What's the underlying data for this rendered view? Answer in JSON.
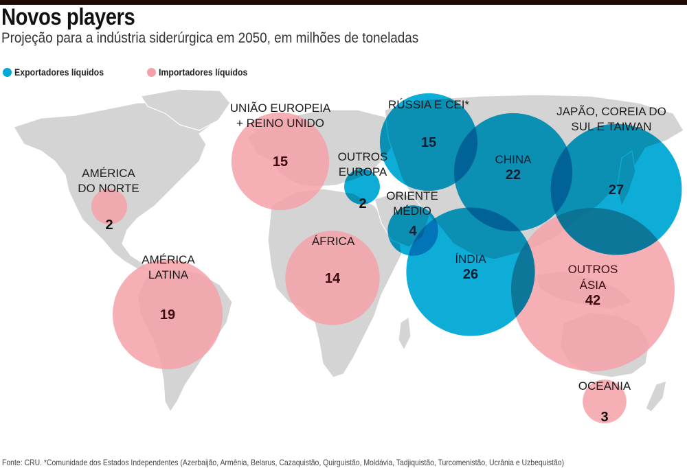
{
  "header": {
    "title": "Novos players",
    "subtitle": "Projeção para a indústria siderúrgica em 2050, em milhões de toneladas"
  },
  "legend": {
    "exporters": {
      "label": "Exportadores líquidos",
      "color": "#00a9d6"
    },
    "importers": {
      "label": "Importadores líquidos",
      "color": "#f3a1a8"
    }
  },
  "footer": "Fonte: CRU. *Comunidade dos Estados Independentes (Azerbaijão, Armênia, Belarus, Cazaquistão, Quirguistão,  Moldávia, Tadjiquistão, Turcomenistão, Ucrânia e Uzbequistão)",
  "chart_data": {
    "type": "bubble-map",
    "title": "Novos players",
    "subtitle": "Projeção para a indústria siderúrgica em 2050, em milhões de toneladas",
    "unit": "milhões de toneladas",
    "legend_position": "top-left",
    "series": [
      {
        "name": "Exportadores líquidos",
        "color": "#00a9d6"
      },
      {
        "name": "Importadores líquidos",
        "color": "#f3a1a8"
      }
    ],
    "regions": [
      {
        "id": "america-do-norte",
        "label": [
          "AMÉRICA",
          "DO NORTE"
        ],
        "value": 2,
        "type": "Importadores líquidos"
      },
      {
        "id": "america-latina",
        "label": [
          "AMÉRICA",
          "LATINA"
        ],
        "value": 19,
        "type": "Importadores líquidos"
      },
      {
        "id": "uniao-europeia",
        "label": [
          "UNIÃO EUROPEIA",
          "+ REINO UNIDO"
        ],
        "value": 15,
        "type": "Importadores líquidos"
      },
      {
        "id": "outros-europa",
        "label": [
          "OUTROS",
          "EUROPA"
        ],
        "value": 2,
        "type": "Exportadores líquidos"
      },
      {
        "id": "africa",
        "label": [
          "ÁFRICA"
        ],
        "value": 14,
        "type": "Importadores líquidos"
      },
      {
        "id": "russia-cei",
        "label": [
          "RÚSSIA E CEI*"
        ],
        "value": 15,
        "type": "Exportadores líquidos"
      },
      {
        "id": "oriente-medio",
        "label": [
          "ORIENTE",
          "MÉDIO"
        ],
        "value": 4,
        "type": "Exportadores líquidos"
      },
      {
        "id": "china",
        "label": [
          "CHINA"
        ],
        "value": 22,
        "type": "Exportadores líquidos"
      },
      {
        "id": "japao-coreia-taiwan",
        "label": [
          "JAPÃO, COREIA DO",
          "SUL E TAIWAN"
        ],
        "value": 27,
        "type": "Exportadores líquidos"
      },
      {
        "id": "india",
        "label": [
          "ÍNDIA"
        ],
        "value": 26,
        "type": "Exportadores líquidos"
      },
      {
        "id": "outros-asia",
        "label": [
          "OUTROS",
          "ÁSIA"
        ],
        "value": 42,
        "type": "Importadores líquidos"
      },
      {
        "id": "oceania",
        "label": [
          "OCEANIA"
        ],
        "value": 3,
        "type": "Importadores líquidos"
      }
    ]
  }
}
